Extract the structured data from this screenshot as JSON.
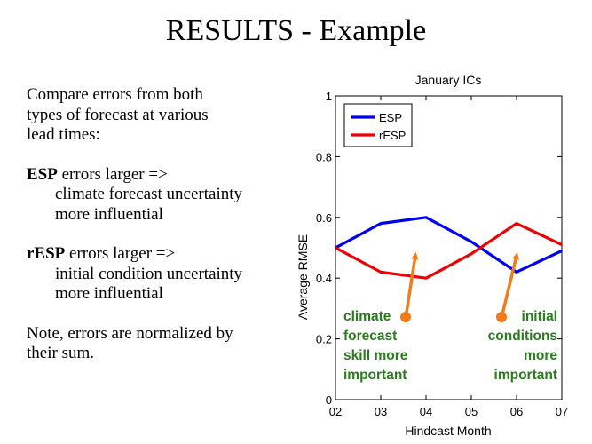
{
  "slide": {
    "title": "RESULTS - Example",
    "intro": [
      "Compare errors from both",
      "types of forecast at various",
      "lead times:"
    ],
    "esp_bold": "ESP",
    "esp_rest": " errors larger =>",
    "esp_indent": [
      "climate forecast uncertainty",
      "more influential"
    ],
    "resp_bold": "rESP",
    "resp_rest": " errors larger =>",
    "resp_indent": [
      "initial condition uncertainty",
      "more influential"
    ],
    "note": [
      "Note, errors are normalized by",
      "their sum."
    ]
  },
  "chart_data": {
    "type": "line",
    "title": "January ICs",
    "xlabel": "Hindcast Month",
    "ylabel": "Average RMSE",
    "categories": [
      "02",
      "03",
      "04",
      "05",
      "06",
      "07"
    ],
    "yticks": [
      "0",
      "0.2",
      "0.4",
      "0.6",
      "0.8",
      "1"
    ],
    "ylim": [
      0,
      1
    ],
    "series": [
      {
        "name": "ESP",
        "color": "#0000ee",
        "values": [
          0.5,
          0.58,
          0.6,
          0.52,
          0.42,
          0.49
        ]
      },
      {
        "name": "rESP",
        "color": "#ee0000",
        "values": [
          0.5,
          0.42,
          0.4,
          0.48,
          0.58,
          0.51
        ]
      }
    ],
    "legend_position": "top-left",
    "annotations": {
      "left": {
        "lines": [
          "climate",
          "forecast",
          "skill more",
          "important"
        ],
        "color": "#2a7a1e"
      },
      "right": {
        "lines": [
          "initial",
          "conditions",
          "more",
          "important"
        ],
        "color": "#2a7a1e"
      },
      "arrow_color": "#f07c1a"
    }
  }
}
